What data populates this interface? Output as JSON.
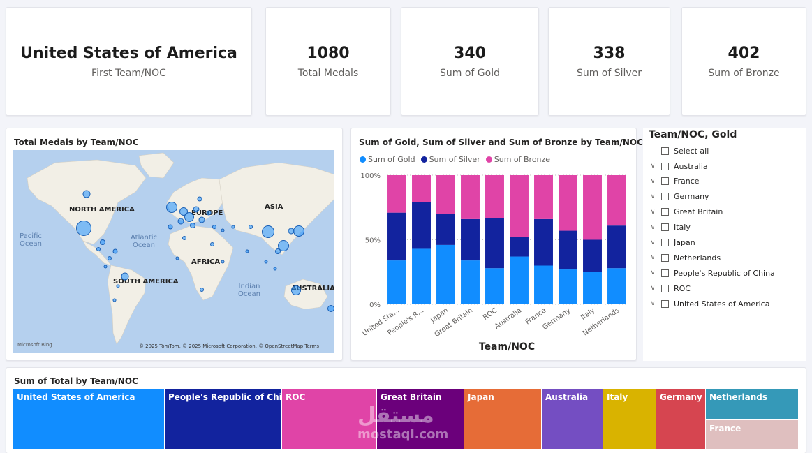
{
  "kpis": [
    {
      "value": "United States of America",
      "label": "First Team/NOC"
    },
    {
      "value": "1080",
      "label": "Total Medals"
    },
    {
      "value": "340",
      "label": "Sum of Gold"
    },
    {
      "value": "338",
      "label": "Sum of Silver"
    },
    {
      "value": "402",
      "label": "Sum of Bronze"
    }
  ],
  "map": {
    "title": "Total Medals by Team/NOC",
    "continents": [
      "NORTH AMERICA",
      "EUROPE",
      "ASIA",
      "AFRICA",
      "SOUTH AMERICA",
      "AUSTRALIA"
    ],
    "oceans": [
      "Pacific Ocean",
      "Atlantic Ocean",
      "Indian Ocean"
    ],
    "copyright": "© 2025 TomTom, © 2025 Microsoft Corporation, © OpenStreetMap  Terms",
    "logo": "Microsoft Bing",
    "colors": {
      "water": "#b5d0ee",
      "land": "#f2efe6",
      "bubble": "#1e90ff"
    }
  },
  "colors": {
    "gold": "#118dff",
    "silver": "#12239e",
    "bronze": "#e044a7"
  },
  "chart_data": {
    "type": "bar",
    "stacked": "100%",
    "title": "Sum of Gold, Sum of Silver and Sum of Bronze by Team/NOC",
    "xlabel": "Team/NOC",
    "ylabel": "",
    "categories": [
      "United Sta...",
      "People's R...",
      "Japan",
      "Great Britain",
      "ROC",
      "Australia",
      "France",
      "Germany",
      "Italy",
      "Netherlands"
    ],
    "yticks": [
      "0%",
      "50%",
      "100%"
    ],
    "ylim": [
      0,
      100
    ],
    "legend_position": "top-left",
    "series": [
      {
        "name": "Sum of Gold",
        "values": [
          34,
          43,
          46,
          34,
          28,
          37,
          30,
          27,
          25,
          28
        ]
      },
      {
        "name": "Sum of Silver",
        "values": [
          37,
          36,
          24,
          32,
          39,
          15,
          36,
          30,
          25,
          33
        ]
      },
      {
        "name": "Sum of Bronze",
        "values": [
          29,
          21,
          30,
          34,
          33,
          48,
          34,
          43,
          50,
          39
        ]
      }
    ]
  },
  "slicer": {
    "title": "Team/NOC, Gold",
    "select_all": "Select all",
    "items": [
      "Australia",
      "France",
      "Germany",
      "Great Britain",
      "Italy",
      "Japan",
      "Netherlands",
      "People's Republic of China",
      "ROC",
      "United States of America"
    ]
  },
  "treemap": {
    "title": "Sum of Total by Team/NOC",
    "tiles": [
      {
        "label": "United States of America",
        "color": "#118dff"
      },
      {
        "label": "People's Republic of China",
        "color": "#12239e"
      },
      {
        "label": "ROC",
        "color": "#e044a7"
      },
      {
        "label": "Great Britain",
        "color": "#6b007b"
      },
      {
        "label": "Japan",
        "color": "#e66c37"
      },
      {
        "label": "Australia",
        "color": "#744ec2"
      },
      {
        "label": "Italy",
        "color": "#d9b300"
      },
      {
        "label": "Germany",
        "color": "#d64550"
      },
      {
        "label": "Netherlands",
        "color": "#3599b8"
      },
      {
        "label": "France",
        "color": "#dfbfbf"
      }
    ]
  },
  "watermark": {
    "arabic": "مستقل",
    "latin": "mostaql.com"
  }
}
